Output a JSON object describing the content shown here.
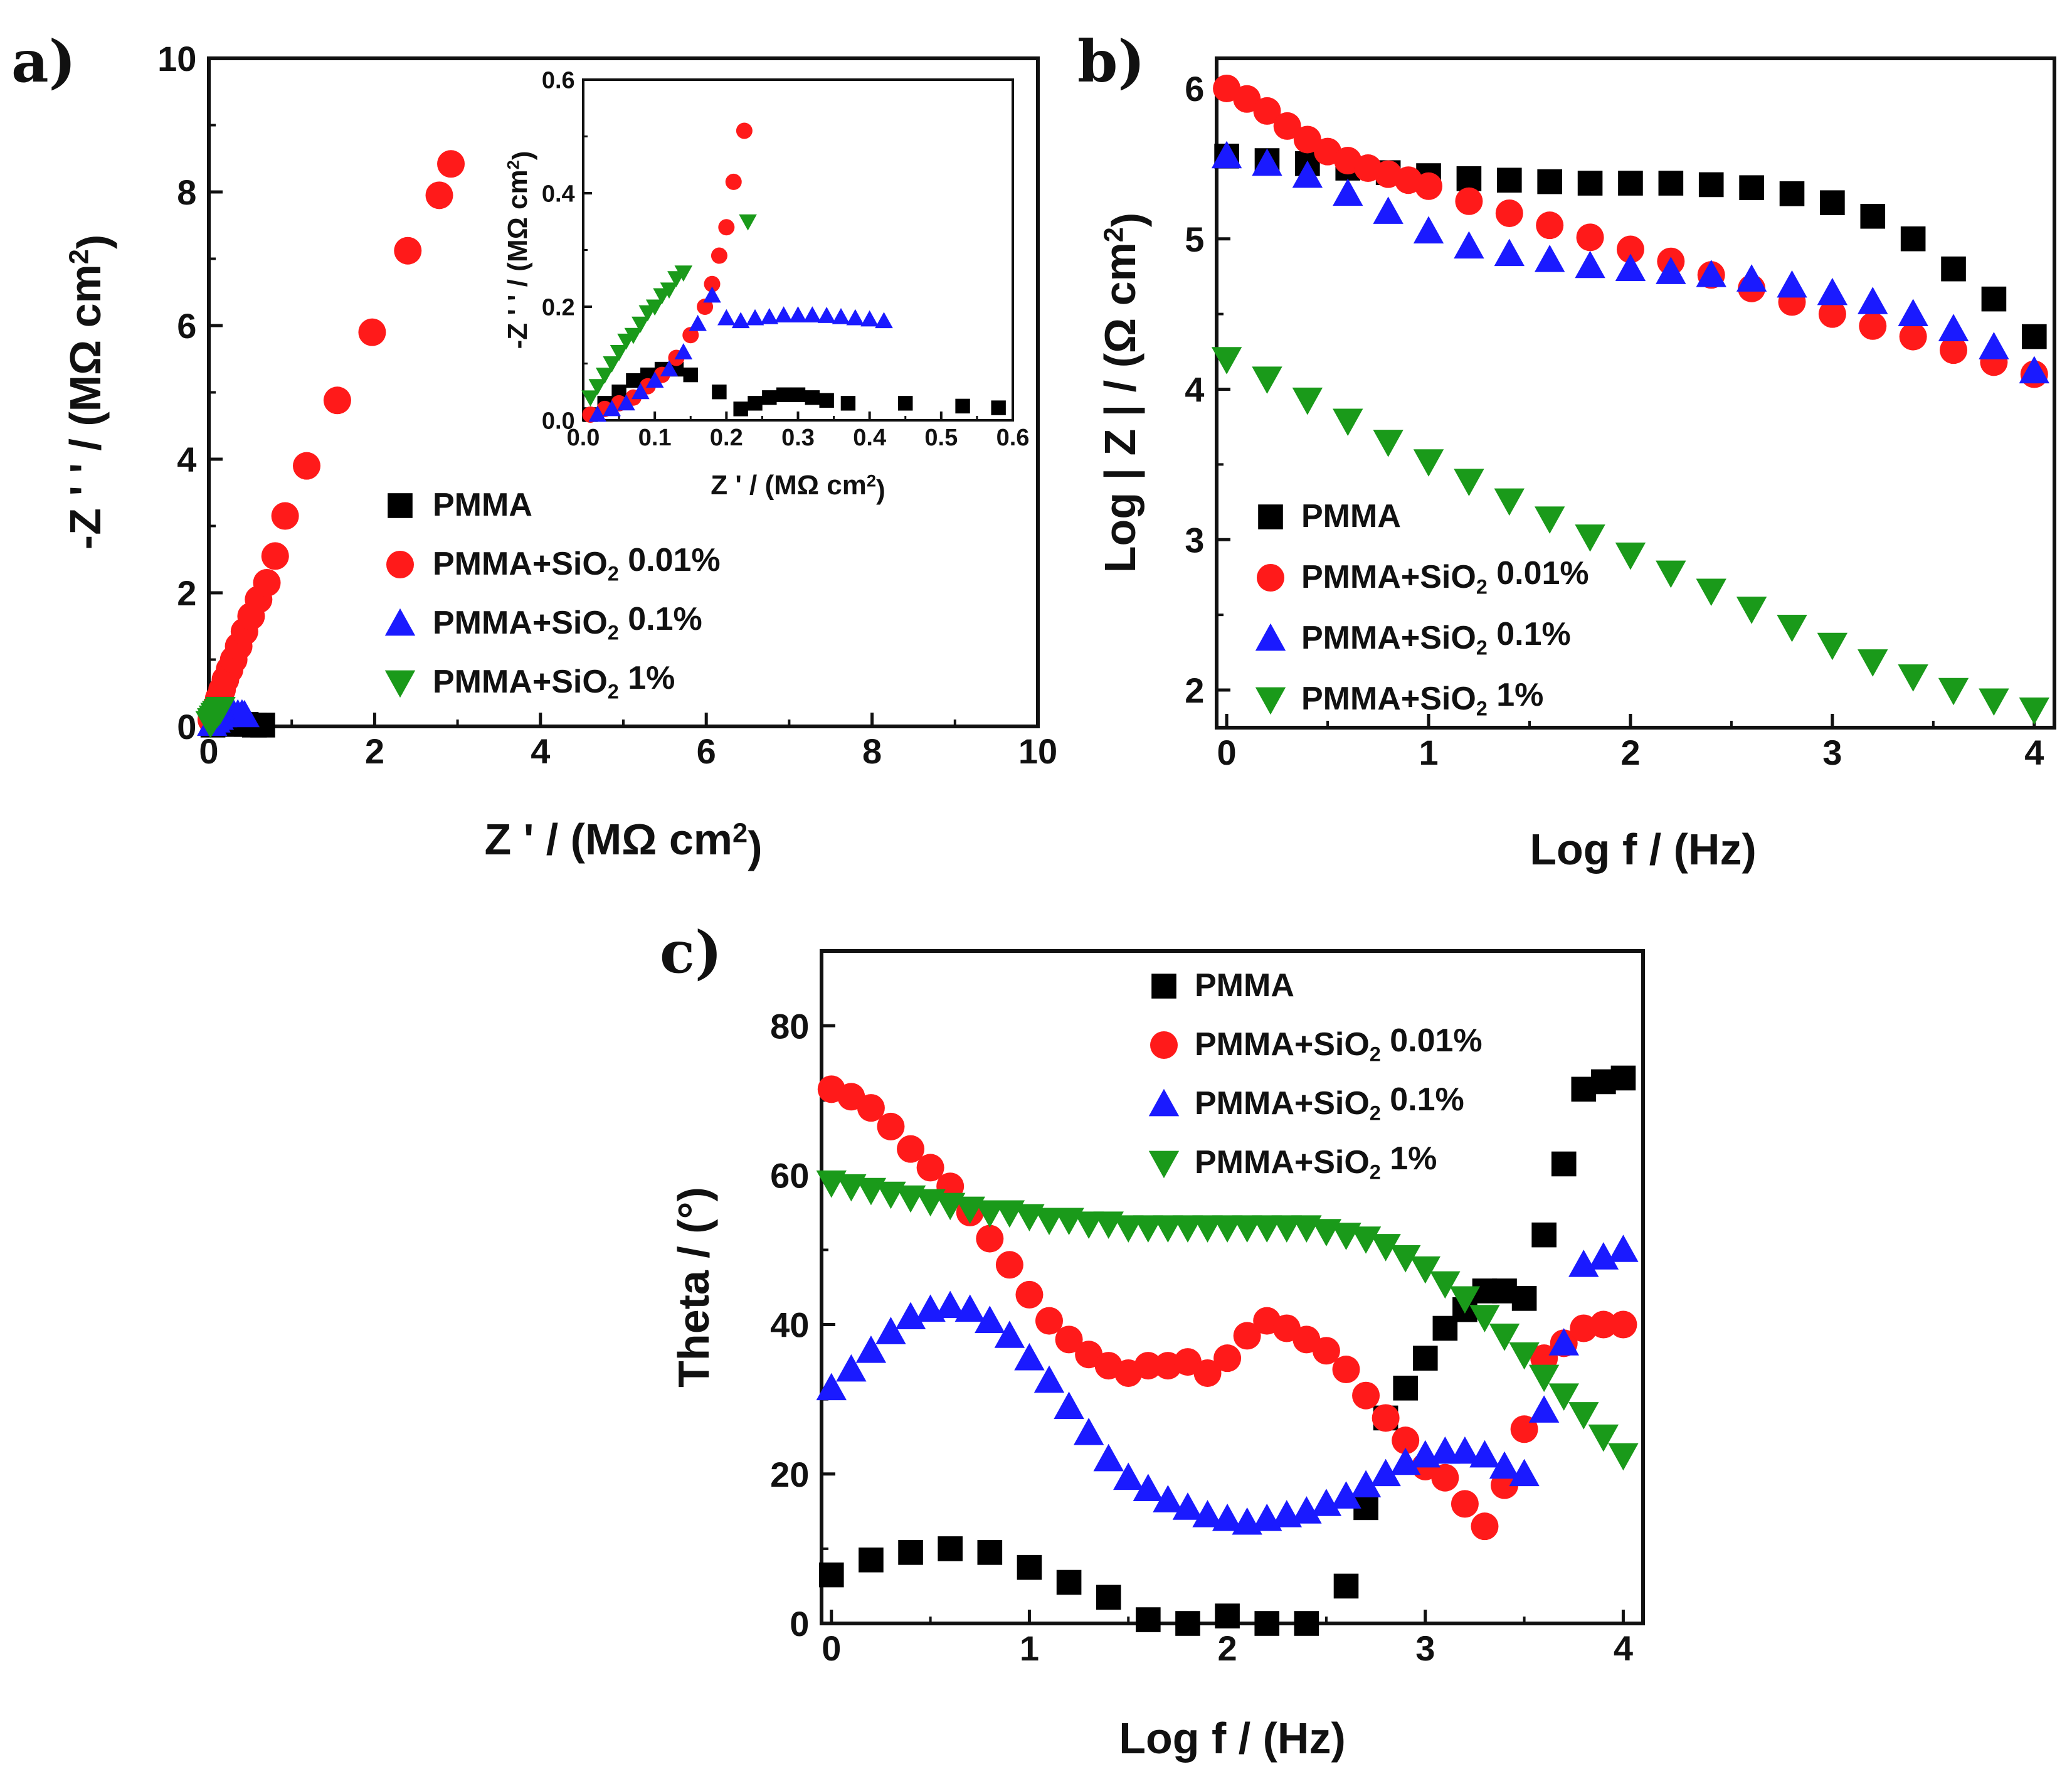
{
  "chart_data": [
    {
      "panel": "a)",
      "type": "scatter",
      "xlabel": "Z ' / (MΩ cm²)",
      "ylabel": "-Z ' ' / (MΩ cm²)",
      "xlim": [
        0,
        10
      ],
      "ylim": [
        0,
        10
      ],
      "xticks": [
        "0",
        "2",
        "4",
        "6",
        "8",
        "10"
      ],
      "yticks": [
        "0",
        "2",
        "4",
        "6",
        "8",
        "10"
      ],
      "legend_position": "lower-center",
      "series": [
        {
          "name": "PMMA",
          "marker": "square",
          "color": "#000000",
          "x": [
            0.05,
            0.15,
            0.25,
            0.35,
            0.45,
            0.55,
            0.65
          ],
          "y": [
            0.02,
            0.05,
            0.04,
            0.03,
            0.03,
            0.02,
            0.02
          ]
        },
        {
          "name": "PMMA+SiO₂ 0.01%",
          "marker": "circle",
          "color": "#ff1a1a",
          "x": [
            0.03,
            0.06,
            0.09,
            0.12,
            0.16,
            0.2,
            0.25,
            0.3,
            0.36,
            0.43,
            0.51,
            0.6,
            0.7,
            0.8,
            0.92,
            1.18,
            1.55,
            1.97,
            2.4,
            2.78,
            2.92
          ],
          "y": [
            0.1,
            0.2,
            0.3,
            0.42,
            0.55,
            0.7,
            0.85,
            1.0,
            1.2,
            1.42,
            1.65,
            1.9,
            2.15,
            2.55,
            3.15,
            3.9,
            4.88,
            5.9,
            7.12,
            7.95,
            8.42
          ]
        },
        {
          "name": "PMMA+SiO₂ 0.1%",
          "marker": "triangle-up",
          "color": "#1a1aff",
          "x": [
            0.04,
            0.08,
            0.12,
            0.16,
            0.2,
            0.25,
            0.3,
            0.35,
            0.4,
            0.43
          ],
          "y": [
            0.04,
            0.09,
            0.13,
            0.17,
            0.2,
            0.19,
            0.18,
            0.18,
            0.18,
            0.17
          ]
        },
        {
          "name": "PMMA+SiO₂ 1%",
          "marker": "triangle-down",
          "color": "#1a9a1a",
          "x": [
            0.02,
            0.04,
            0.06,
            0.08,
            0.1,
            0.12,
            0.14
          ],
          "y": [
            0.05,
            0.09,
            0.13,
            0.17,
            0.2,
            0.23,
            0.26
          ]
        }
      ],
      "inset": {
        "xlabel": "Z ' / (MΩ cm²)",
        "ylabel": "-Z ' ' / (MΩ cm²)",
        "xlim": [
          0,
          0.6
        ],
        "ylim": [
          0,
          0.6
        ],
        "xticks": [
          "0.0",
          "0.1",
          "0.2",
          "0.3",
          "0.4",
          "0.5",
          "0.6"
        ],
        "yticks": [
          "0.0",
          "0.2",
          "0.4",
          "0.6"
        ],
        "series": [
          {
            "name": "PMMA",
            "marker": "square",
            "color": "#000000",
            "x": [
              0.01,
              0.03,
              0.05,
              0.07,
              0.09,
              0.11,
              0.13,
              0.15,
              0.19,
              0.22,
              0.24,
              0.26,
              0.28,
              0.3,
              0.32,
              0.34,
              0.37,
              0.45,
              0.53,
              0.58
            ],
            "y": [
              0.01,
              0.03,
              0.05,
              0.07,
              0.08,
              0.09,
              0.09,
              0.08,
              0.05,
              0.02,
              0.03,
              0.04,
              0.045,
              0.045,
              0.04,
              0.035,
              0.03,
              0.03,
              0.025,
              0.022
            ]
          },
          {
            "name": "PMMA+SiO₂ 0.01%",
            "marker": "circle",
            "color": "#ff1a1a",
            "x": [
              0.01,
              0.03,
              0.05,
              0.07,
              0.09,
              0.11,
              0.13,
              0.15,
              0.17,
              0.18,
              0.19,
              0.2,
              0.21,
              0.225
            ],
            "y": [
              0.01,
              0.02,
              0.03,
              0.04,
              0.06,
              0.08,
              0.11,
              0.15,
              0.2,
              0.24,
              0.29,
              0.34,
              0.42,
              0.51
            ]
          },
          {
            "name": "PMMA+SiO₂ 0.1%",
            "marker": "triangle-up",
            "color": "#1a1aff",
            "x": [
              0.02,
              0.04,
              0.06,
              0.08,
              0.1,
              0.12,
              0.14,
              0.16,
              0.18,
              0.2,
              0.22,
              0.24,
              0.26,
              0.28,
              0.3,
              0.32,
              0.34,
              0.36,
              0.38,
              0.4,
              0.42
            ],
            "y": [
              0.01,
              0.02,
              0.03,
              0.05,
              0.07,
              0.09,
              0.12,
              0.17,
              0.22,
              0.18,
              0.175,
              0.18,
              0.182,
              0.185,
              0.185,
              0.185,
              0.184,
              0.182,
              0.18,
              0.178,
              0.175
            ]
          },
          {
            "name": "PMMA+SiO₂ 1%",
            "marker": "triangle-down",
            "color": "#1a9a1a",
            "x": [
              0.01,
              0.02,
              0.03,
              0.04,
              0.05,
              0.06,
              0.07,
              0.08,
              0.09,
              0.1,
              0.11,
              0.12,
              0.13,
              0.14,
              0.23
            ],
            "y": [
              0.04,
              0.06,
              0.08,
              0.1,
              0.12,
              0.14,
              0.15,
              0.17,
              0.19,
              0.2,
              0.22,
              0.23,
              0.25,
              0.26,
              0.35
            ]
          }
        ]
      }
    },
    {
      "panel": "b)",
      "type": "scatter",
      "xlabel": "Log f / (Hz)",
      "ylabel": "Log | Z | / (Ω cm²)",
      "xlim": [
        -0.05,
        4.1
      ],
      "ylim": [
        1.75,
        6.2
      ],
      "xticks": [
        "0",
        "1",
        "2",
        "3",
        "4"
      ],
      "yticks": [
        "2",
        "3",
        "4",
        "5",
        "6"
      ],
      "legend_position": "lower-left",
      "series": [
        {
          "name": "PMMA",
          "marker": "square",
          "color": "#000000",
          "x": [
            0.0,
            0.2,
            0.4,
            0.6,
            0.8,
            1.0,
            1.2,
            1.4,
            1.6,
            1.8,
            2.0,
            2.2,
            2.4,
            2.6,
            2.8,
            3.0,
            3.2,
            3.4,
            3.6,
            3.8,
            4.0
          ],
          "y": [
            5.55,
            5.52,
            5.5,
            5.47,
            5.44,
            5.42,
            5.4,
            5.39,
            5.38,
            5.37,
            5.37,
            5.37,
            5.36,
            5.34,
            5.3,
            5.24,
            5.15,
            5.0,
            4.8,
            4.6,
            4.35
          ]
        },
        {
          "name": "PMMA+SiO₂ 0.01%",
          "marker": "circle",
          "color": "#ff1a1a",
          "x": [
            0.0,
            0.1,
            0.2,
            0.3,
            0.4,
            0.5,
            0.6,
            0.7,
            0.8,
            0.9,
            1.0,
            1.2,
            1.4,
            1.6,
            1.8,
            2.0,
            2.2,
            2.4,
            2.6,
            2.8,
            3.0,
            3.2,
            3.4,
            3.6,
            3.8,
            4.0
          ],
          "y": [
            6.0,
            5.93,
            5.85,
            5.75,
            5.66,
            5.58,
            5.52,
            5.47,
            5.43,
            5.39,
            5.35,
            5.25,
            5.17,
            5.09,
            5.01,
            4.93,
            4.85,
            4.76,
            4.67,
            4.58,
            4.5,
            4.42,
            4.35,
            4.26,
            4.18,
            4.1
          ]
        },
        {
          "name": "PMMA+SiO₂ 0.1%",
          "marker": "triangle-up",
          "color": "#1a1aff",
          "x": [
            0.0,
            0.2,
            0.4,
            0.6,
            0.8,
            1.0,
            1.2,
            1.4,
            1.6,
            1.8,
            2.0,
            2.2,
            2.4,
            2.6,
            2.8,
            3.0,
            3.2,
            3.4,
            3.6,
            3.8,
            4.0
          ],
          "y": [
            5.55,
            5.5,
            5.42,
            5.3,
            5.18,
            5.05,
            4.95,
            4.9,
            4.86,
            4.82,
            4.8,
            4.78,
            4.76,
            4.73,
            4.69,
            4.64,
            4.58,
            4.5,
            4.4,
            4.28,
            4.12
          ]
        },
        {
          "name": "PMMA+SiO₂ 1%",
          "marker": "triangle-down",
          "color": "#1a9a1a",
          "x": [
            0.0,
            0.2,
            0.4,
            0.6,
            0.8,
            1.0,
            1.2,
            1.4,
            1.6,
            1.8,
            2.0,
            2.2,
            2.4,
            2.6,
            2.8,
            3.0,
            3.2,
            3.4,
            3.6,
            3.8,
            4.0
          ],
          "y": [
            4.2,
            4.07,
            3.93,
            3.79,
            3.65,
            3.52,
            3.39,
            3.26,
            3.14,
            3.02,
            2.9,
            2.78,
            2.66,
            2.54,
            2.42,
            2.3,
            2.19,
            2.09,
            2.0,
            1.93,
            1.87
          ]
        }
      ]
    },
    {
      "panel": "c)",
      "type": "scatter",
      "xlabel": "Log f / (Hz)",
      "ylabel": "Theta / (°)",
      "xlim": [
        -0.05,
        4.1
      ],
      "ylim": [
        0,
        90
      ],
      "xticks": [
        "0",
        "1",
        "2",
        "3",
        "4"
      ],
      "yticks": [
        "0",
        "20",
        "40",
        "60",
        "80"
      ],
      "legend_position": "top-center",
      "series": [
        {
          "name": "PMMA",
          "marker": "square",
          "color": "#000000",
          "x": [
            0.0,
            0.2,
            0.4,
            0.6,
            0.8,
            1.0,
            1.2,
            1.4,
            1.6,
            1.8,
            2.0,
            2.2,
            2.4,
            2.6,
            2.7,
            2.8,
            2.9,
            3.0,
            3.1,
            3.2,
            3.3,
            3.4,
            3.5,
            3.6,
            3.7,
            3.8,
            3.9,
            4.0
          ],
          "y": [
            6.5,
            8.5,
            9.5,
            10.0,
            9.5,
            7.5,
            5.5,
            3.5,
            0.5,
            0.0,
            1.0,
            0.0,
            0.0,
            5.0,
            15.5,
            27.5,
            31.5,
            35.5,
            39.5,
            42.0,
            44.5,
            44.5,
            43.5,
            52.0,
            61.5,
            71.5,
            72.5,
            73.0
          ]
        },
        {
          "name": "PMMA+SiO₂ 0.01%",
          "marker": "circle",
          "color": "#ff1a1a",
          "x": [
            0.0,
            0.1,
            0.2,
            0.3,
            0.4,
            0.5,
            0.6,
            0.7,
            0.8,
            0.9,
            1.0,
            1.1,
            1.2,
            1.3,
            1.4,
            1.5,
            1.6,
            1.7,
            1.8,
            1.9,
            2.0,
            2.1,
            2.2,
            2.3,
            2.4,
            2.5,
            2.6,
            2.7,
            2.8,
            2.9,
            3.0,
            3.1,
            3.2,
            3.3,
            3.4,
            3.5,
            3.6,
            3.7,
            3.8,
            3.9,
            4.0
          ],
          "y": [
            71.5,
            70.5,
            69.0,
            66.5,
            63.5,
            61.0,
            58.5,
            55.0,
            51.5,
            48.0,
            44.0,
            40.5,
            38.0,
            36.0,
            34.5,
            33.5,
            34.5,
            34.5,
            35.0,
            33.5,
            35.5,
            38.5,
            40.5,
            39.5,
            38.0,
            36.5,
            34.0,
            30.5,
            27.5,
            24.5,
            21.0,
            19.5,
            16.0,
            13.0,
            18.5,
            26.0,
            35.5,
            37.5,
            39.5,
            40.0,
            40.0
          ]
        },
        {
          "name": "PMMA+SiO₂ 0.1%",
          "marker": "triangle-up",
          "color": "#1a1aff",
          "x": [
            0.0,
            0.1,
            0.2,
            0.3,
            0.4,
            0.5,
            0.6,
            0.7,
            0.8,
            0.9,
            1.0,
            1.1,
            1.2,
            1.3,
            1.4,
            1.5,
            1.6,
            1.7,
            1.8,
            1.9,
            2.0,
            2.1,
            2.2,
            2.3,
            2.4,
            2.5,
            2.6,
            2.7,
            2.8,
            2.9,
            3.0,
            3.1,
            3.2,
            3.3,
            3.4,
            3.5,
            3.6,
            3.7,
            3.8,
            3.9,
            4.0
          ],
          "y": [
            31.5,
            34.0,
            36.5,
            39.0,
            41.0,
            42.0,
            42.5,
            42.0,
            40.5,
            38.5,
            35.5,
            32.5,
            29.0,
            25.5,
            22.0,
            19.5,
            18.0,
            16.5,
            15.5,
            14.5,
            14.0,
            13.5,
            14.0,
            14.5,
            15.0,
            16.0,
            17.0,
            18.5,
            20.0,
            21.5,
            22.5,
            23.0,
            23.0,
            22.5,
            21.0,
            20.0,
            28.5,
            37.5,
            48.0,
            49.0,
            50.0
          ]
        },
        {
          "name": "PMMA+SiO₂ 1%",
          "marker": "triangle-down",
          "color": "#1a9a1a",
          "x": [
            0.0,
            0.1,
            0.2,
            0.3,
            0.4,
            0.5,
            0.6,
            0.7,
            0.8,
            0.9,
            1.0,
            1.1,
            1.2,
            1.3,
            1.4,
            1.5,
            1.6,
            1.7,
            1.8,
            1.9,
            2.0,
            2.1,
            2.2,
            2.3,
            2.4,
            2.5,
            2.6,
            2.7,
            2.8,
            2.9,
            3.0,
            3.1,
            3.2,
            3.3,
            3.4,
            3.5,
            3.6,
            3.7,
            3.8,
            3.9,
            4.0
          ],
          "y": [
            59.0,
            58.5,
            58.0,
            57.5,
            57.0,
            56.5,
            56.0,
            55.5,
            55.0,
            55.0,
            54.5,
            54.0,
            54.0,
            53.5,
            53.5,
            53.0,
            53.0,
            53.0,
            53.0,
            53.0,
            53.0,
            53.0,
            53.0,
            53.0,
            53.0,
            52.5,
            52.0,
            51.5,
            50.5,
            49.0,
            47.5,
            45.5,
            43.5,
            41.0,
            38.5,
            36.0,
            33.0,
            30.5,
            28.0,
            25.0,
            22.5
          ]
        }
      ]
    }
  ]
}
